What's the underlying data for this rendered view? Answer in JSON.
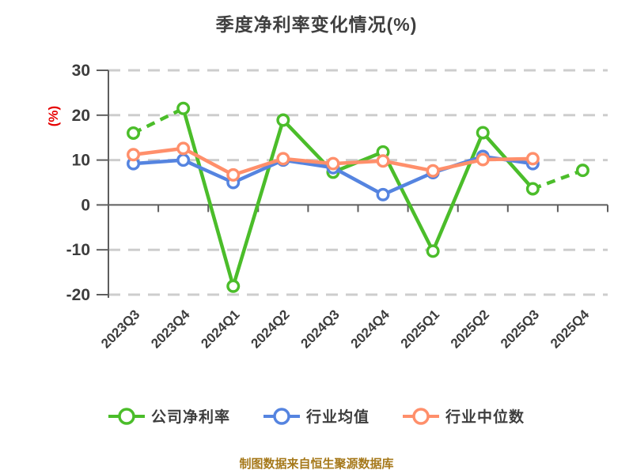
{
  "page": {
    "title": "季度净利率变化情况(%)",
    "caption": "制图数据来自恒生聚源数据库"
  },
  "chart_data": {
    "type": "line",
    "title": "季度净利率变化情况(%)",
    "ylabel": "(%)",
    "ylim": [
      -20,
      30
    ],
    "yticks": [
      30,
      20,
      10,
      0,
      -10,
      -20
    ],
    "grid": "horizontal dashed gridlines, solid zero line",
    "legend_position": "bottom",
    "categories": [
      "2023Q3",
      "2023Q4",
      "2024Q1",
      "2024Q2",
      "2024Q3",
      "2024Q4",
      "2025Q1",
      "2025Q2",
      "2025Q3",
      "2025Q4"
    ],
    "series": [
      {
        "name": "公司净利率",
        "color": "#4BBD2A",
        "marker": "open-circle",
        "values": [
          16.0,
          21.5,
          -18.1,
          18.9,
          7.3,
          11.8,
          -10.3,
          16.1,
          3.6,
          7.7
        ],
        "dashed_segments": [
          [
            0,
            1
          ],
          [
            8,
            9
          ]
        ]
      },
      {
        "name": "行业均值",
        "color": "#5584E0",
        "marker": "open-circle",
        "values": [
          9.2,
          10.0,
          5.0,
          10.0,
          8.3,
          2.3,
          7.2,
          10.8,
          9.2,
          null
        ],
        "dashed_segments": []
      },
      {
        "name": "行业中位数",
        "color": "#FF8F6B",
        "marker": "open-circle",
        "values": [
          11.2,
          12.6,
          6.7,
          10.3,
          9.2,
          9.8,
          7.6,
          10.1,
          10.3,
          null
        ],
        "dashed_segments": []
      }
    ],
    "axis_color": "#5E5E5E",
    "grid_color": "#CDCDCD",
    "ylabel_color": "#E60000",
    "title_color": "#3F3F3F",
    "caption_color": "#A6791B"
  }
}
